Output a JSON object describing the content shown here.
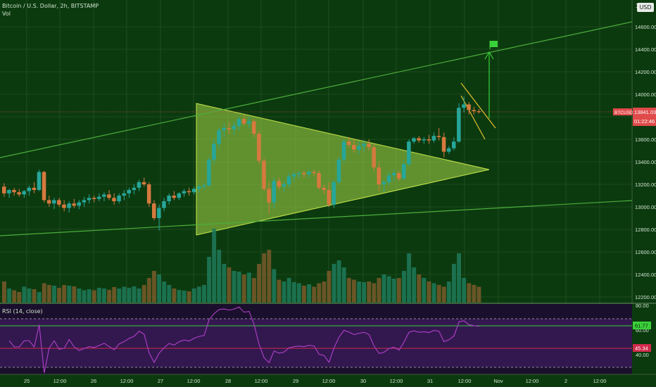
{
  "header": {
    "title": "Bitcoin / U.S. Dollar, 2h, BITSTAMP",
    "indicator": "Vol",
    "currency_button": "USD"
  },
  "price_axis": {
    "ticks": [
      "14600.00",
      "14400.00",
      "14200.00",
      "14000.00",
      "13800.00",
      "13600.00",
      "13400.00",
      "13200.00",
      "13000.00",
      "12800.00",
      "12600.00",
      "12400.00",
      "12200.00"
    ],
    "top_tick": "1"
  },
  "price_labels": {
    "symbol_tag": "BTCUSD",
    "last_price": "13841.03",
    "countdown": "01:22:46"
  },
  "rsi": {
    "label": "RSI (14, close)",
    "ticks": [
      "80.00",
      "60.00",
      "40.00"
    ],
    "value_label": "61.77",
    "value_label2": "45.34"
  },
  "time_axis": {
    "ticks": [
      "25",
      "12:00",
      "26",
      "12:00",
      "27",
      "12:00",
      "28",
      "12:00",
      "29",
      "12:00",
      "30",
      "12:00",
      "31",
      "12:00",
      "Nov",
      "12:00",
      "2",
      "12:00"
    ]
  },
  "colors": {
    "up": "#26a69a",
    "down": "#d6793f",
    "pattern_fill": "#a8d84a",
    "trendline": "#4caf3c",
    "rsi_line": "#b040c8",
    "last_price_tag": "#e04a4a"
  },
  "chart_data": {
    "type": "candlestick",
    "symbol": "BTCUSD",
    "timeframe": "2h",
    "ylim": [
      12100,
      14800
    ],
    "last_price": 13841.03,
    "ohlc": [
      [
        13180,
        13210,
        13090,
        13120
      ],
      [
        13120,
        13160,
        13080,
        13150
      ],
      [
        13150,
        13170,
        13100,
        13130
      ],
      [
        13130,
        13160,
        13090,
        13110
      ],
      [
        13110,
        13150,
        13080,
        13140
      ],
      [
        13140,
        13190,
        13100,
        13170
      ],
      [
        13170,
        13220,
        13120,
        13150
      ],
      [
        13150,
        13330,
        13140,
        13310
      ],
      [
        13310,
        13320,
        13040,
        13060
      ],
      [
        13060,
        13100,
        13000,
        13030
      ],
      [
        13030,
        13080,
        12980,
        13060
      ],
      [
        13060,
        13080,
        13000,
        13020
      ],
      [
        13020,
        13060,
        12960,
        12990
      ],
      [
        12990,
        13050,
        12950,
        13030
      ],
      [
        13030,
        13070,
        12990,
        13010
      ],
      [
        13010,
        13060,
        12980,
        13040
      ],
      [
        13040,
        13090,
        13000,
        13060
      ],
      [
        13060,
        13110,
        13030,
        13080
      ],
      [
        13080,
        13100,
        13040,
        13070
      ],
      [
        13070,
        13120,
        13050,
        13090
      ],
      [
        13090,
        13130,
        13050,
        13110
      ],
      [
        13110,
        13150,
        13060,
        13080
      ],
      [
        13080,
        13120,
        13020,
        13050
      ],
      [
        13050,
        13120,
        13030,
        13100
      ],
      [
        13100,
        13150,
        13060,
        13120
      ],
      [
        13120,
        13170,
        13080,
        13150
      ],
      [
        13150,
        13200,
        13110,
        13170
      ],
      [
        13170,
        13240,
        13140,
        13220
      ],
      [
        13220,
        13260,
        13180,
        13200
      ],
      [
        13200,
        13220,
        13000,
        13030
      ],
      [
        13030,
        13060,
        12880,
        12900
      ],
      [
        12900,
        13020,
        12790,
        12990
      ],
      [
        12990,
        13080,
        12960,
        13050
      ],
      [
        13050,
        13120,
        13020,
        13100
      ],
      [
        13100,
        13140,
        13060,
        13080
      ],
      [
        13080,
        13130,
        13060,
        13120
      ],
      [
        13120,
        13160,
        13090,
        13140
      ],
      [
        13140,
        13170,
        13100,
        13130
      ],
      [
        13130,
        13180,
        13110,
        13160
      ],
      [
        13160,
        13200,
        13130,
        13180
      ],
      [
        13180,
        13210,
        13150,
        13190
      ],
      [
        13190,
        13440,
        13180,
        13420
      ],
      [
        13420,
        13600,
        13380,
        13560
      ],
      [
        13560,
        13700,
        13520,
        13680
      ],
      [
        13680,
        13740,
        13620,
        13700
      ],
      [
        13700,
        13750,
        13650,
        13690
      ],
      [
        13690,
        13760,
        13640,
        13720
      ],
      [
        13720,
        13800,
        13680,
        13780
      ],
      [
        13780,
        13810,
        13720,
        13740
      ],
      [
        13740,
        13800,
        13700,
        13760
      ],
      [
        13760,
        13780,
        13620,
        13650
      ],
      [
        13650,
        13680,
        13380,
        13410
      ],
      [
        13410,
        13430,
        13140,
        13160
      ],
      [
        13160,
        13220,
        12940,
        13040
      ],
      [
        13040,
        13260,
        12990,
        13230
      ],
      [
        13230,
        13260,
        13150,
        13180
      ],
      [
        13180,
        13230,
        13130,
        13200
      ],
      [
        13200,
        13300,
        13170,
        13270
      ],
      [
        13270,
        13310,
        13230,
        13290
      ],
      [
        13290,
        13320,
        13250,
        13300
      ],
      [
        13300,
        13320,
        13260,
        13290
      ],
      [
        13290,
        13330,
        13260,
        13310
      ],
      [
        13310,
        13330,
        13270,
        13300
      ],
      [
        13300,
        13320,
        13150,
        13170
      ],
      [
        13170,
        13200,
        13110,
        13150
      ],
      [
        13150,
        13220,
        13000,
        13020
      ],
      [
        13020,
        13240,
        12990,
        13220
      ],
      [
        13220,
        13440,
        13200,
        13420
      ],
      [
        13420,
        13600,
        13390,
        13580
      ],
      [
        13580,
        13620,
        13520,
        13550
      ],
      [
        13550,
        13600,
        13480,
        13510
      ],
      [
        13510,
        13580,
        13470,
        13540
      ],
      [
        13540,
        13590,
        13490,
        13560
      ],
      [
        13560,
        13600,
        13500,
        13530
      ],
      [
        13530,
        13560,
        13320,
        13350
      ],
      [
        13350,
        13400,
        13140,
        13200
      ],
      [
        13200,
        13240,
        13130,
        13220
      ],
      [
        13220,
        13310,
        13190,
        13280
      ],
      [
        13280,
        13330,
        13230,
        13300
      ],
      [
        13300,
        13320,
        13230,
        13250
      ],
      [
        13250,
        13410,
        13240,
        13380
      ],
      [
        13380,
        13600,
        13360,
        13580
      ],
      [
        13580,
        13620,
        13560,
        13610
      ],
      [
        13610,
        13630,
        13570,
        13590
      ],
      [
        13590,
        13620,
        13560,
        13600
      ],
      [
        13600,
        13640,
        13560,
        13590
      ],
      [
        13590,
        13660,
        13570,
        13630
      ],
      [
        13630,
        13700,
        13590,
        13620
      ],
      [
        13620,
        13660,
        13440,
        13490
      ],
      [
        13490,
        13540,
        13470,
        13520
      ],
      [
        13520,
        13620,
        13500,
        13580
      ],
      [
        13580,
        13920,
        13570,
        13880
      ],
      [
        13880,
        13980,
        13840,
        13910
      ],
      [
        13910,
        13930,
        13820,
        13860
      ],
      [
        13860,
        13890,
        13820,
        13850
      ],
      [
        13850,
        13870,
        13830,
        13841
      ]
    ],
    "volume": [
      60,
      40,
      35,
      30,
      45,
      40,
      38,
      30,
      55,
      50,
      48,
      42,
      50,
      48,
      46,
      40,
      35,
      38,
      35,
      42,
      40,
      36,
      44,
      40,
      45,
      42,
      46,
      40,
      50,
      70,
      90,
      80,
      60,
      50,
      40,
      36,
      34,
      32,
      40,
      45,
      50,
      130,
      210,
      150,
      110,
      100,
      90,
      88,
      80,
      85,
      70,
      110,
      140,
      150,
      95,
      65,
      60,
      70,
      58,
      55,
      48,
      52,
      45,
      55,
      60,
      90,
      110,
      120,
      100,
      70,
      65,
      60,
      58,
      60,
      55,
      70,
      80,
      75,
      68,
      70,
      90,
      140,
      100,
      80,
      70,
      60,
      55,
      50,
      45,
      60,
      110,
      140,
      70,
      55,
      50,
      45
    ]
  }
}
